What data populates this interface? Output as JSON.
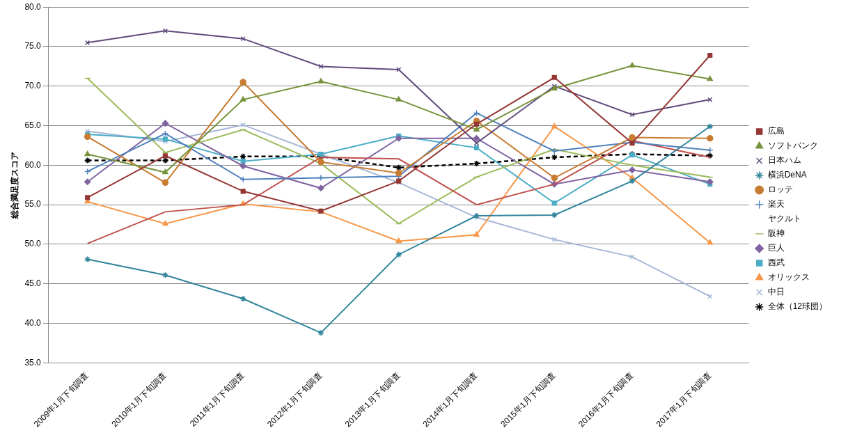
{
  "chart_data": {
    "type": "line",
    "y_label": "総合満足度スコア",
    "categories": [
      "2009年1月下旬調査",
      "2010年1月下旬調査",
      "2011年1月下旬調査",
      "2012年1月下旬調査",
      "2013年1月下旬調査",
      "2014年1月下旬調査",
      "2015年1月下旬調査",
      "2016年1月下旬調査",
      "2017年1月下旬調査"
    ],
    "ylim": [
      35,
      80
    ],
    "yticks": [
      {
        "value": 35,
        "label": "35.0"
      },
      {
        "value": 40,
        "label": "40.0"
      },
      {
        "value": 45,
        "label": "45.0"
      },
      {
        "value": 50,
        "label": "50.0"
      },
      {
        "value": 55,
        "label": "55.0"
      },
      {
        "value": 60,
        "label": "60.0"
      },
      {
        "value": 65,
        "label": "65.0"
      },
      {
        "value": 70,
        "label": "70.0"
      },
      {
        "value": 75,
        "label": "75.0"
      },
      {
        "value": 80,
        "label": "80.0"
      }
    ],
    "grid": true,
    "legend": "right",
    "series": [
      {
        "name": "広島",
        "color": "#953735",
        "marker": "square",
        "line_style": "solid",
        "values": [
          55.9,
          61.2,
          56.7,
          54.2,
          58.0,
          65.2,
          71.1,
          62.8,
          73.9
        ]
      },
      {
        "name": "ソフトバンク",
        "color": "#77933c",
        "marker": "triangle",
        "line_style": "solid",
        "values": [
          61.4,
          59.1,
          68.3,
          70.6,
          68.3,
          64.5,
          69.7,
          72.6,
          70.9
        ]
      },
      {
        "name": "日本ハム",
        "color": "#604a7b",
        "marker": "x",
        "line_style": "solid",
        "values": [
          75.5,
          77.0,
          76.0,
          72.5,
          72.1,
          62.8,
          70.0,
          66.4,
          68.3
        ]
      },
      {
        "name": "横浜DeNA",
        "color": "#31859c",
        "marker": "star",
        "line_style": "solid",
        "values": [
          48.1,
          46.1,
          43.1,
          38.8,
          48.7,
          53.6,
          53.7,
          58.0,
          64.9
        ]
      },
      {
        "name": "ロッテ",
        "color": "#c87c32",
        "marker": "circle",
        "line_style": "solid",
        "values": [
          63.6,
          57.8,
          70.5,
          60.4,
          59.0,
          65.6,
          58.4,
          63.5,
          63.4
        ]
      },
      {
        "name": "楽天",
        "color": "#4f81bd",
        "marker": "plus",
        "line_style": "solid",
        "values": [
          59.2,
          64.0,
          58.2,
          58.4,
          58.6,
          66.6,
          61.8,
          62.9,
          61.9
        ]
      },
      {
        "name": "ヤクルト",
        "color": "#c0504d",
        "marker": "none",
        "line_style": "solid",
        "values": [
          50.1,
          54.1,
          55.0,
          61.0,
          60.8,
          55.0,
          57.6,
          63.1,
          61.0
        ]
      },
      {
        "name": "阪神",
        "color": "#9bbb59",
        "marker": "dash",
        "line_style": "solid",
        "values": [
          71.0,
          61.6,
          64.5,
          60.2,
          52.6,
          58.5,
          62.0,
          60.0,
          58.5
        ]
      },
      {
        "name": "巨人",
        "color": "#8064a2",
        "marker": "diamond",
        "line_style": "solid",
        "values": [
          57.9,
          65.3,
          59.9,
          57.1,
          63.4,
          63.4,
          57.6,
          59.4,
          57.9
        ]
      },
      {
        "name": "西武",
        "color": "#4bacc6",
        "marker": "square",
        "line_style": "solid",
        "values": [
          63.9,
          63.3,
          60.5,
          61.4,
          63.7,
          62.2,
          55.2,
          61.3,
          57.6
        ]
      },
      {
        "name": "オリックス",
        "color": "#f79646",
        "marker": "triangle",
        "line_style": "solid",
        "values": [
          55.4,
          52.6,
          55.1,
          54.1,
          50.4,
          51.2,
          64.9,
          58.4,
          50.2
        ]
      },
      {
        "name": "中日",
        "color": "#a5b6d6",
        "marker": "x",
        "line_style": "solid",
        "values": [
          64.3,
          63.0,
          65.1,
          61.4,
          57.8,
          53.4,
          50.6,
          48.4,
          43.4
        ]
      },
      {
        "name": "全体（12球団）",
        "color": "#000000",
        "marker": "star",
        "line_style": "dashed",
        "values": [
          60.6,
          60.6,
          61.1,
          61.1,
          59.7,
          60.2,
          61.0,
          61.4,
          61.2
        ]
      }
    ]
  }
}
